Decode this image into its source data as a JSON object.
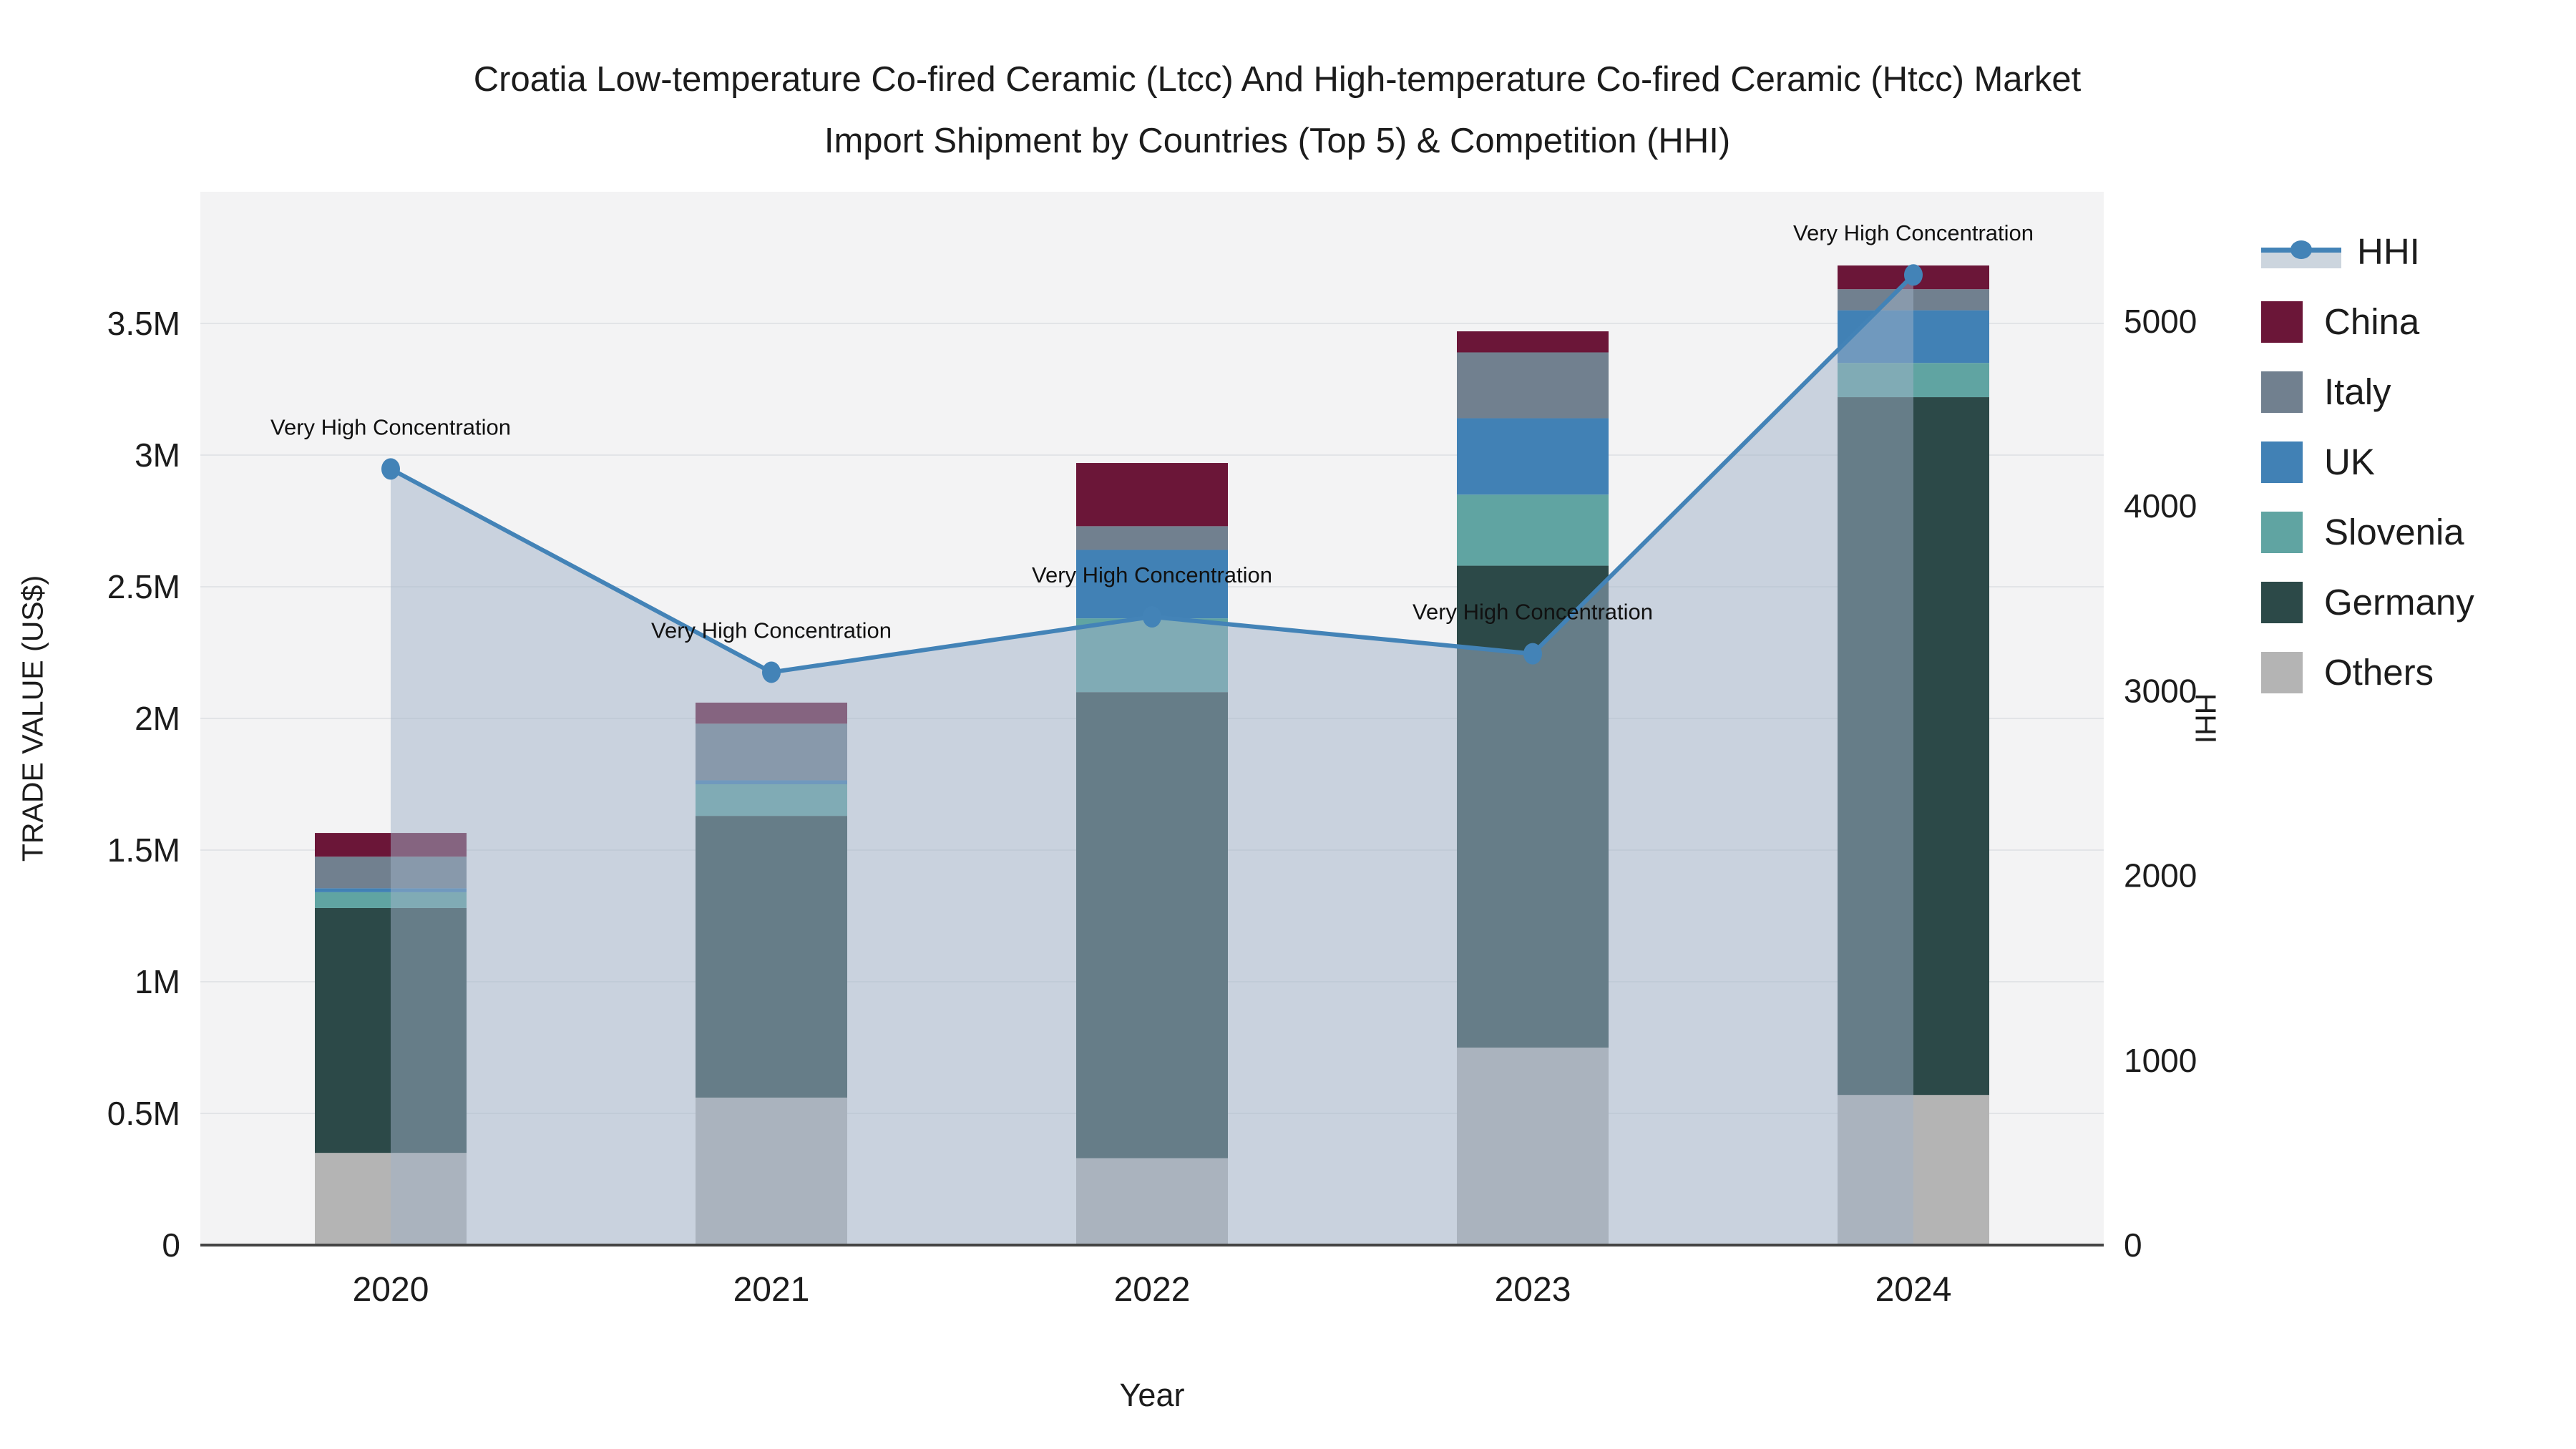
{
  "title": {
    "line1": "Croatia Low-temperature Co-fired Ceramic (Ltcc) And High-temperature Co-fired Ceramic (Htcc) Market",
    "line2": "Import Shipment by Countries (Top 5) & Competition (HHI)"
  },
  "axes": {
    "y_left": {
      "title": "TRADE VALUE (US$)",
      "tick_labels": [
        "0",
        "0.5M",
        "1M",
        "1.5M",
        "2M",
        "2.5M",
        "3M",
        "3.5M"
      ],
      "tick_values": [
        0,
        500000,
        1000000,
        1500000,
        2000000,
        2500000,
        3000000,
        3500000
      ],
      "max": 4000000
    },
    "y_right": {
      "title": "HHI",
      "tick_labels": [
        "0",
        "1000",
        "2000",
        "3000",
        "4000",
        "5000"
      ],
      "tick_values": [
        0,
        1000,
        2000,
        3000,
        4000,
        5000
      ],
      "max": 5700
    },
    "x": {
      "title": "Year"
    }
  },
  "legend": {
    "items": [
      {
        "label": "HHI",
        "kind": "line",
        "color": "#4383b7"
      },
      {
        "label": "China",
        "kind": "box",
        "color": "#6b1638"
      },
      {
        "label": "Italy",
        "kind": "box",
        "color": "#71808f"
      },
      {
        "label": "UK",
        "kind": "box",
        "color": "#4181b5"
      },
      {
        "label": "Slovenia",
        "kind": "box",
        "color": "#60a4a2"
      },
      {
        "label": "Germany",
        "kind": "box",
        "color": "#2c4948"
      },
      {
        "label": "Others",
        "kind": "box",
        "color": "#b4b4b4"
      }
    ]
  },
  "chart_data": {
    "type": "bar",
    "subtype": "stacked-bars-with-line-area-overlay",
    "categories": [
      "2020",
      "2021",
      "2022",
      "2023",
      "2024"
    ],
    "series": [
      {
        "name": "Others",
        "color": "#b4b4b4",
        "values": [
          350000,
          560000,
          330000,
          750000,
          570000
        ]
      },
      {
        "name": "Germany",
        "color": "#2c4948",
        "values": [
          930000,
          1070000,
          1770000,
          1830000,
          2650000
        ]
      },
      {
        "name": "Slovenia",
        "color": "#60a4a2",
        "values": [
          60000,
          120000,
          280000,
          270000,
          130000
        ]
      },
      {
        "name": "UK",
        "color": "#4181b5",
        "values": [
          15000,
          15000,
          260000,
          290000,
          200000
        ]
      },
      {
        "name": "Italy",
        "color": "#71808f",
        "values": [
          120000,
          215000,
          90000,
          250000,
          80000
        ]
      },
      {
        "name": "China",
        "color": "#6b1638",
        "values": [
          90000,
          80000,
          240000,
          80000,
          90000
        ]
      }
    ],
    "totals": [
      1565000,
      2060000,
      2970000,
      3470000,
      3720000
    ],
    "hhi_series": {
      "name": "HHI",
      "line_color": "#4383b7",
      "area_color": "#9fb2c8",
      "area_opacity": 0.5,
      "values": [
        4200,
        3100,
        3400,
        3200,
        5250
      ],
      "annotation_text": "Very High Concentration",
      "annotated_points": [
        0,
        1,
        2,
        3,
        4
      ]
    },
    "title": "Croatia Low-temperature Co-fired Ceramic (Ltcc) And High-temperature Co-fired Ceramic (Htcc) Market Import Shipment by Countries (Top 5) & Competition (HHI)",
    "xlabel": "Year",
    "ylabel_left": "TRADE VALUE (US$)",
    "ylabel_right": "HHI",
    "ylim_left": [
      0,
      4000000
    ],
    "ylim_right": [
      0,
      5700
    ],
    "grid": true,
    "legend_position": "right",
    "colors": {
      "plot_bg": "#f3f3f4",
      "gridline": "#e2e4e7",
      "axis_line": "#444444",
      "text": "#1c1c1c"
    }
  }
}
